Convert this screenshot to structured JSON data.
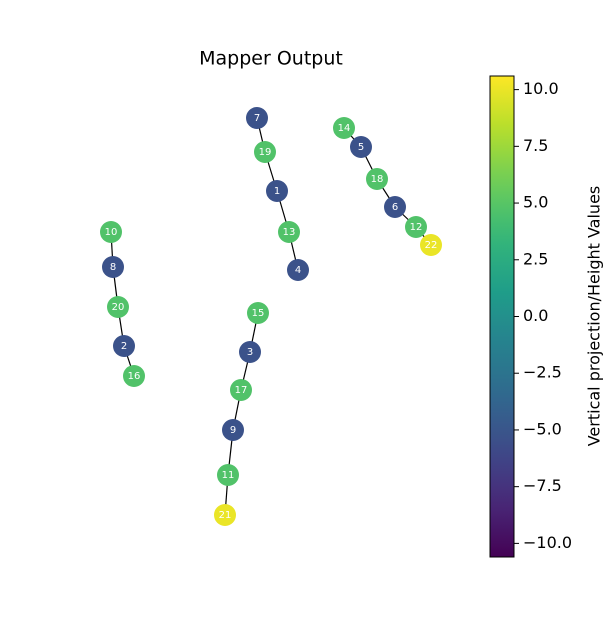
{
  "chart_data": {
    "type": "graph",
    "title": "Mapper Output",
    "nodes": [
      {
        "label": "7",
        "value": -5.3
      },
      {
        "label": "19",
        "value": 4.7
      },
      {
        "label": "1",
        "value": -5.3
      },
      {
        "label": "13",
        "value": 4.7
      },
      {
        "label": "4",
        "value": -5.3
      },
      {
        "label": "14",
        "value": 4.7
      },
      {
        "label": "5",
        "value": -5.3
      },
      {
        "label": "18",
        "value": 4.7
      },
      {
        "label": "6",
        "value": -5.3
      },
      {
        "label": "12",
        "value": 4.7
      },
      {
        "label": "22",
        "value": 10
      },
      {
        "label": "10",
        "value": 4.7
      },
      {
        "label": "8",
        "value": -5.3
      },
      {
        "label": "20",
        "value": 4.7
      },
      {
        "label": "2",
        "value": -5.3
      },
      {
        "label": "16",
        "value": 4.7
      },
      {
        "label": "15",
        "value": 4.7
      },
      {
        "label": "3",
        "value": -5.3
      },
      {
        "label": "17",
        "value": 4.7
      },
      {
        "label": "9",
        "value": -5.3
      },
      {
        "label": "11",
        "value": 4.7
      },
      {
        "label": "21",
        "value": 10
      }
    ],
    "colorbar": {
      "label": "Vertical projection/Height Values",
      "colormap": "viridis",
      "lim": [
        -10.6,
        10.6
      ],
      "ticks": [
        {
          "value": 10,
          "label": "10.0"
        },
        {
          "value": 7.5,
          "label": "7.5"
        },
        {
          "value": 5,
          "label": "5.0"
        },
        {
          "value": 2.5,
          "label": "2.5"
        },
        {
          "value": 0,
          "label": "0.0"
        },
        {
          "value": -2.5,
          "label": "−2.5"
        },
        {
          "value": -5,
          "label": "−5.0"
        },
        {
          "value": -7.5,
          "label": "−7.5"
        },
        {
          "value": -10,
          "label": "−10.0"
        }
      ]
    }
  }
}
